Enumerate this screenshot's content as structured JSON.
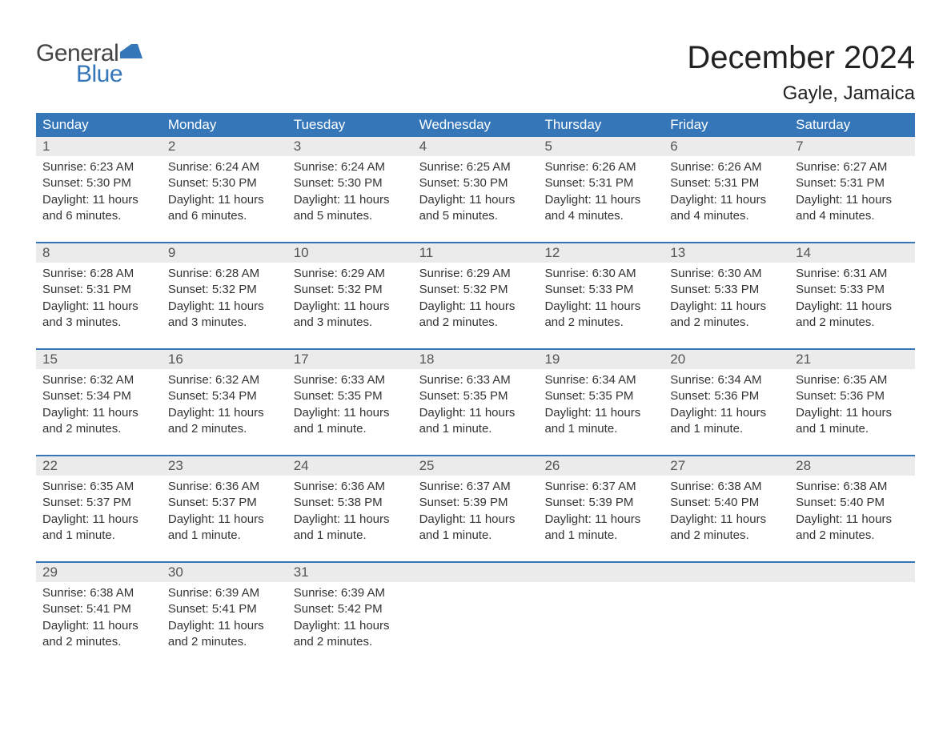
{
  "logo": {
    "text_general": "General",
    "text_blue": "Blue",
    "flag_color": "#3576b8"
  },
  "title": "December 2024",
  "location": "Gayle, Jamaica",
  "header_bg": "#3576b8",
  "header_fg": "#ffffff",
  "daynum_bg": "#ebebeb",
  "week_border": "#3576b8",
  "weekdays": [
    "Sunday",
    "Monday",
    "Tuesday",
    "Wednesday",
    "Thursday",
    "Friday",
    "Saturday"
  ],
  "labels": {
    "sunrise": "Sunrise:",
    "sunset": "Sunset:",
    "daylight": "Daylight:"
  },
  "weeks": [
    [
      {
        "num": "1",
        "sunrise": "6:23 AM",
        "sunset": "5:30 PM",
        "daylight": "11 hours and 6 minutes."
      },
      {
        "num": "2",
        "sunrise": "6:24 AM",
        "sunset": "5:30 PM",
        "daylight": "11 hours and 6 minutes."
      },
      {
        "num": "3",
        "sunrise": "6:24 AM",
        "sunset": "5:30 PM",
        "daylight": "11 hours and 5 minutes."
      },
      {
        "num": "4",
        "sunrise": "6:25 AM",
        "sunset": "5:30 PM",
        "daylight": "11 hours and 5 minutes."
      },
      {
        "num": "5",
        "sunrise": "6:26 AM",
        "sunset": "5:31 PM",
        "daylight": "11 hours and 4 minutes."
      },
      {
        "num": "6",
        "sunrise": "6:26 AM",
        "sunset": "5:31 PM",
        "daylight": "11 hours and 4 minutes."
      },
      {
        "num": "7",
        "sunrise": "6:27 AM",
        "sunset": "5:31 PM",
        "daylight": "11 hours and 4 minutes."
      }
    ],
    [
      {
        "num": "8",
        "sunrise": "6:28 AM",
        "sunset": "5:31 PM",
        "daylight": "11 hours and 3 minutes."
      },
      {
        "num": "9",
        "sunrise": "6:28 AM",
        "sunset": "5:32 PM",
        "daylight": "11 hours and 3 minutes."
      },
      {
        "num": "10",
        "sunrise": "6:29 AM",
        "sunset": "5:32 PM",
        "daylight": "11 hours and 3 minutes."
      },
      {
        "num": "11",
        "sunrise": "6:29 AM",
        "sunset": "5:32 PM",
        "daylight": "11 hours and 2 minutes."
      },
      {
        "num": "12",
        "sunrise": "6:30 AM",
        "sunset": "5:33 PM",
        "daylight": "11 hours and 2 minutes."
      },
      {
        "num": "13",
        "sunrise": "6:30 AM",
        "sunset": "5:33 PM",
        "daylight": "11 hours and 2 minutes."
      },
      {
        "num": "14",
        "sunrise": "6:31 AM",
        "sunset": "5:33 PM",
        "daylight": "11 hours and 2 minutes."
      }
    ],
    [
      {
        "num": "15",
        "sunrise": "6:32 AM",
        "sunset": "5:34 PM",
        "daylight": "11 hours and 2 minutes."
      },
      {
        "num": "16",
        "sunrise": "6:32 AM",
        "sunset": "5:34 PM",
        "daylight": "11 hours and 2 minutes."
      },
      {
        "num": "17",
        "sunrise": "6:33 AM",
        "sunset": "5:35 PM",
        "daylight": "11 hours and 1 minute."
      },
      {
        "num": "18",
        "sunrise": "6:33 AM",
        "sunset": "5:35 PM",
        "daylight": "11 hours and 1 minute."
      },
      {
        "num": "19",
        "sunrise": "6:34 AM",
        "sunset": "5:35 PM",
        "daylight": "11 hours and 1 minute."
      },
      {
        "num": "20",
        "sunrise": "6:34 AM",
        "sunset": "5:36 PM",
        "daylight": "11 hours and 1 minute."
      },
      {
        "num": "21",
        "sunrise": "6:35 AM",
        "sunset": "5:36 PM",
        "daylight": "11 hours and 1 minute."
      }
    ],
    [
      {
        "num": "22",
        "sunrise": "6:35 AM",
        "sunset": "5:37 PM",
        "daylight": "11 hours and 1 minute."
      },
      {
        "num": "23",
        "sunrise": "6:36 AM",
        "sunset": "5:37 PM",
        "daylight": "11 hours and 1 minute."
      },
      {
        "num": "24",
        "sunrise": "6:36 AM",
        "sunset": "5:38 PM",
        "daylight": "11 hours and 1 minute."
      },
      {
        "num": "25",
        "sunrise": "6:37 AM",
        "sunset": "5:39 PM",
        "daylight": "11 hours and 1 minute."
      },
      {
        "num": "26",
        "sunrise": "6:37 AM",
        "sunset": "5:39 PM",
        "daylight": "11 hours and 1 minute."
      },
      {
        "num": "27",
        "sunrise": "6:38 AM",
        "sunset": "5:40 PM",
        "daylight": "11 hours and 2 minutes."
      },
      {
        "num": "28",
        "sunrise": "6:38 AM",
        "sunset": "5:40 PM",
        "daylight": "11 hours and 2 minutes."
      }
    ],
    [
      {
        "num": "29",
        "sunrise": "6:38 AM",
        "sunset": "5:41 PM",
        "daylight": "11 hours and 2 minutes."
      },
      {
        "num": "30",
        "sunrise": "6:39 AM",
        "sunset": "5:41 PM",
        "daylight": "11 hours and 2 minutes."
      },
      {
        "num": "31",
        "sunrise": "6:39 AM",
        "sunset": "5:42 PM",
        "daylight": "11 hours and 2 minutes."
      },
      null,
      null,
      null,
      null
    ]
  ]
}
